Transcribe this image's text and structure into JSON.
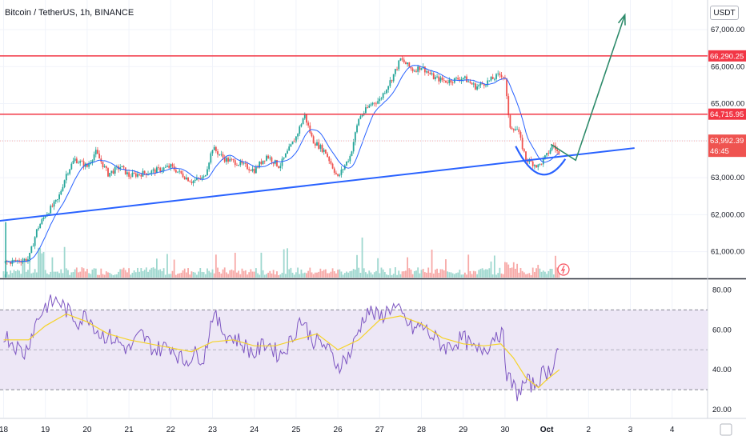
{
  "header": {
    "symbol": "Bitcoin / TetherUS, 1h, BINANCE",
    "unit": "USDT"
  },
  "colors": {
    "up": "#26a69a",
    "down": "#ef5350",
    "ma": "#2962ff",
    "resistance": "#f23645",
    "trendline": "#2962ff",
    "arrow": "#2e8b6b",
    "rsi": "#7e57c2",
    "rsi_ma": "#f5d328",
    "rsi_band": "#ede7f6"
  },
  "chart_data": [
    {
      "type": "candlestick",
      "panel": "price",
      "x_labels": [
        "18",
        "19",
        "20",
        "21",
        "22",
        "23",
        "24",
        "25",
        "26",
        "27",
        "28",
        "29",
        "30",
        "Oct",
        "2",
        "3",
        "4"
      ],
      "y_ticks": [
        61000,
        62000,
        63000,
        64000,
        65000,
        66000,
        67000
      ],
      "y_tick_labels": [
        "61,000.00",
        "62,000.00",
        "63,000.00",
        "64,000.00",
        "65,000.00",
        "66,000.00",
        "67,000.00"
      ],
      "ylim": [
        60300,
        67800
      ],
      "resistance_levels": [
        {
          "value": 66290.25,
          "label": "66,290.25"
        },
        {
          "value": 64715.95,
          "label": "64,715.95"
        }
      ],
      "current_price": {
        "value": 63992.39,
        "label": "63,992.39",
        "countdown": "46:45"
      },
      "close_path": [
        [
          18.0,
          60700
        ],
        [
          18.6,
          60800
        ],
        [
          18.8,
          61600
        ],
        [
          19.0,
          62000
        ],
        [
          19.3,
          62400
        ],
        [
          19.5,
          63100
        ],
        [
          19.7,
          63500
        ],
        [
          20.0,
          63300
        ],
        [
          20.2,
          63700
        ],
        [
          20.5,
          63100
        ],
        [
          20.8,
          63300
        ],
        [
          21.0,
          63050
        ],
        [
          21.5,
          63150
        ],
        [
          22.0,
          63300
        ],
        [
          22.5,
          62900
        ],
        [
          22.8,
          63000
        ],
        [
          23.0,
          63800
        ],
        [
          23.3,
          63500
        ],
        [
          23.6,
          63400
        ],
        [
          24.0,
          63200
        ],
        [
          24.3,
          63600
        ],
        [
          24.6,
          63300
        ],
        [
          25.0,
          64100
        ],
        [
          25.2,
          64700
        ],
        [
          25.4,
          64000
        ],
        [
          25.7,
          63700
        ],
        [
          26.0,
          63000
        ],
        [
          26.3,
          63600
        ],
        [
          26.5,
          64600
        ],
        [
          26.8,
          65000
        ],
        [
          27.0,
          65100
        ],
        [
          27.3,
          65700
        ],
        [
          27.5,
          66200
        ],
        [
          27.8,
          65900
        ],
        [
          28.0,
          66000
        ],
        [
          28.3,
          65700
        ],
        [
          28.6,
          65600
        ],
        [
          29.0,
          65700
        ],
        [
          29.3,
          65450
        ],
        [
          29.6,
          65600
        ],
        [
          29.9,
          65800
        ],
        [
          30.0,
          65700
        ],
        [
          30.1,
          64400
        ],
        [
          30.3,
          64300
        ],
        [
          30.5,
          63500
        ],
        [
          30.8,
          63300
        ],
        [
          31.0,
          63600
        ],
        [
          31.15,
          63900
        ],
        [
          31.3,
          63600
        ]
      ],
      "trendline": [
        [
          17.65,
          61800
        ],
        [
          33.1,
          63800
        ]
      ],
      "projection_arrow": [
        [
          31.5,
          63600
        ],
        [
          32.85,
          67700
        ]
      ],
      "cup": {
        "center_x": 30.85,
        "bottom": 62900
      }
    },
    {
      "type": "line",
      "panel": "rsi",
      "y_ticks": [
        20,
        40,
        60,
        80
      ],
      "y_tick_labels": [
        "20.00",
        "40.00",
        "60.00",
        "80.00"
      ],
      "ylim": [
        16,
        85
      ],
      "bands": [
        30,
        50,
        70
      ],
      "series": [
        {
          "values": [
            [
              18.0,
              58
            ],
            [
              18.5,
              48
            ],
            [
              18.8,
              65
            ],
            [
              19.0,
              72
            ],
            [
              19.3,
              75
            ],
            [
              19.5,
              70
            ],
            [
              19.8,
              64
            ],
            [
              20.0,
              68
            ],
            [
              20.3,
              58
            ],
            [
              20.6,
              56
            ],
            [
              21.0,
              50
            ],
            [
              21.3,
              58
            ],
            [
              21.6,
              50
            ],
            [
              22.0,
              52
            ],
            [
              22.3,
              44
            ],
            [
              22.6,
              48
            ],
            [
              22.8,
              46
            ],
            [
              23.0,
              68
            ],
            [
              23.3,
              58
            ],
            [
              23.6,
              55
            ],
            [
              24.0,
              48
            ],
            [
              24.3,
              54
            ],
            [
              24.6,
              47
            ],
            [
              24.9,
              55
            ],
            [
              25.1,
              66
            ],
            [
              25.4,
              55
            ],
            [
              25.7,
              52
            ],
            [
              26.0,
              42
            ],
            [
              26.3,
              48
            ],
            [
              26.5,
              60
            ],
            [
              26.7,
              70
            ],
            [
              27.0,
              66
            ],
            [
              27.3,
              72
            ],
            [
              27.5,
              68
            ],
            [
              27.8,
              60
            ],
            [
              28.0,
              62
            ],
            [
              28.3,
              56
            ],
            [
              28.6,
              51
            ],
            [
              29.0,
              56
            ],
            [
              29.3,
              49
            ],
            [
              29.6,
              52
            ],
            [
              29.8,
              59
            ],
            [
              29.95,
              57
            ],
            [
              30.05,
              37
            ],
            [
              30.3,
              28
            ],
            [
              30.5,
              34
            ],
            [
              30.7,
              32
            ],
            [
              30.9,
              38
            ],
            [
              31.1,
              40
            ],
            [
              31.2,
              47
            ],
            [
              31.3,
              52
            ]
          ]
        },
        {
          "values": [
            [
              18.0,
              55
            ],
            [
              18.6,
              55
            ],
            [
              19.0,
              62
            ],
            [
              19.5,
              68
            ],
            [
              20.0,
              64
            ],
            [
              20.5,
              58
            ],
            [
              21.0,
              55
            ],
            [
              21.5,
              53
            ],
            [
              22.0,
              51
            ],
            [
              22.5,
              49
            ],
            [
              23.0,
              54
            ],
            [
              23.5,
              55
            ],
            [
              24.0,
              52
            ],
            [
              24.5,
              52
            ],
            [
              25.0,
              55
            ],
            [
              25.5,
              58
            ],
            [
              26.0,
              50
            ],
            [
              26.5,
              55
            ],
            [
              27.0,
              65
            ],
            [
              27.5,
              67
            ],
            [
              28.0,
              63
            ],
            [
              28.5,
              56
            ],
            [
              29.0,
              53
            ],
            [
              29.5,
              52
            ],
            [
              29.9,
              53
            ],
            [
              30.2,
              46
            ],
            [
              30.5,
              36
            ],
            [
              30.8,
              31
            ],
            [
              31.0,
              35
            ],
            [
              31.3,
              40
            ]
          ]
        }
      ]
    }
  ]
}
